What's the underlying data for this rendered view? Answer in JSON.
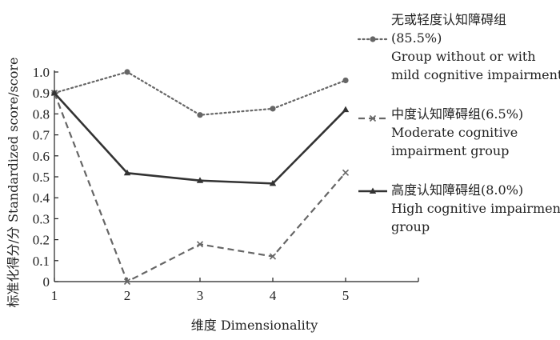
{
  "chart_data": {
    "type": "line",
    "x": [
      1,
      2,
      3,
      4,
      5
    ],
    "x_ticks": [
      "1",
      "2",
      "3",
      "4",
      "5"
    ],
    "y_ticks": [
      "0",
      "0.1",
      "0.2",
      "0.3",
      "0.4",
      "0.5",
      "0.6",
      "0.7",
      "0.8",
      "0.9",
      "1.0"
    ],
    "xlim": [
      1,
      6
    ],
    "ylim": [
      0,
      1.0
    ],
    "xlabel": "维度 Dimensionality",
    "ylabel": "标准化得分/分 Standardized score/score",
    "grid": false,
    "legend_position": "right",
    "series": [
      {
        "name": "无或轻度认知障碍组 (85.5%) Group without or with mild cognitive impairment",
        "legend_lines": [
          "无或轻度认知障碍组",
          "(85.5%)",
          "Group without or with",
          "mild cognitive impairment"
        ],
        "values": [
          0.9,
          1.0,
          0.795,
          0.825,
          0.96
        ],
        "color": "#666666",
        "line_style": "dotted",
        "marker": "circle"
      },
      {
        "name": "中度认知障碍组(6.5%) Moderate cognitive impairment group",
        "legend_lines": [
          "中度认知障碍组(6.5%)",
          "Moderate cognitive",
          "impairment group"
        ],
        "values": [
          0.9,
          0.0,
          0.178,
          0.12,
          0.52
        ],
        "color": "#666666",
        "line_style": "dashed",
        "marker": "x"
      },
      {
        "name": "高度认知障碍组(8.0%) High cognitive impairment group",
        "legend_lines": [
          "高度认知障碍组(8.0%)",
          "High cognitive impairment",
          "group"
        ],
        "values": [
          0.9,
          0.518,
          0.482,
          0.468,
          0.82
        ],
        "color": "#333333",
        "line_style": "solid",
        "marker": "triangle"
      }
    ]
  }
}
